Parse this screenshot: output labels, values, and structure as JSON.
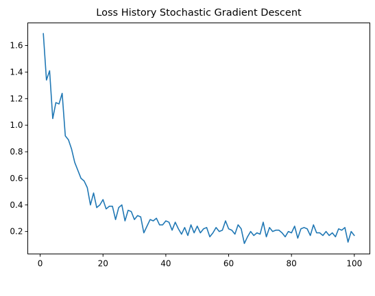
{
  "chart_data": {
    "type": "line",
    "title": "Loss History Stochastic Gradient Descent",
    "xlabel": "",
    "ylabel": "",
    "xlim": [
      -3.95,
      104.95
    ],
    "ylim": [
      0.031,
      1.77
    ],
    "x_ticks": [
      0,
      20,
      40,
      60,
      80,
      100
    ],
    "y_ticks": [
      0.2,
      0.4,
      0.6,
      0.8,
      1.0,
      1.2,
      1.4,
      1.6
    ],
    "y_tick_labels": [
      "0.2",
      "0.4",
      "0.6",
      "0.8",
      "1.0",
      "1.2",
      "1.4",
      "1.6"
    ],
    "x_tick_labels": [
      "0",
      "20",
      "40",
      "60",
      "80",
      "100"
    ],
    "grid": false,
    "color": "#1f77b4",
    "series": [
      {
        "x": [
          1,
          2,
          3,
          4,
          5,
          6,
          7,
          8,
          9,
          10,
          11,
          12,
          13,
          14,
          15,
          16,
          17,
          18,
          19,
          20,
          21,
          22,
          23,
          24,
          25,
          26,
          27,
          28,
          29,
          30,
          31,
          32,
          33,
          34,
          35,
          36,
          37,
          38,
          39,
          40,
          41,
          42,
          43,
          44,
          45,
          46,
          47,
          48,
          49,
          50,
          51,
          52,
          53,
          54,
          55,
          56,
          57,
          58,
          59,
          60,
          61,
          62,
          63,
          64,
          65,
          66,
          67,
          68,
          69,
          70,
          71,
          72,
          73,
          74,
          75,
          76,
          77,
          78,
          79,
          80,
          81,
          82,
          83,
          84,
          85,
          86,
          87,
          88,
          89,
          90,
          91,
          92,
          93,
          94,
          95,
          96,
          97,
          98,
          99,
          100
        ],
        "values": [
          1.69,
          1.34,
          1.41,
          1.05,
          1.17,
          1.16,
          1.24,
          0.92,
          0.89,
          0.82,
          0.72,
          0.66,
          0.6,
          0.58,
          0.53,
          0.4,
          0.49,
          0.38,
          0.4,
          0.44,
          0.37,
          0.39,
          0.39,
          0.29,
          0.38,
          0.4,
          0.28,
          0.36,
          0.35,
          0.29,
          0.32,
          0.31,
          0.19,
          0.24,
          0.29,
          0.28,
          0.3,
          0.25,
          0.25,
          0.28,
          0.27,
          0.21,
          0.27,
          0.22,
          0.18,
          0.23,
          0.17,
          0.25,
          0.19,
          0.24,
          0.19,
          0.22,
          0.23,
          0.16,
          0.19,
          0.23,
          0.2,
          0.21,
          0.28,
          0.22,
          0.21,
          0.18,
          0.25,
          0.22,
          0.11,
          0.16,
          0.2,
          0.17,
          0.19,
          0.18,
          0.27,
          0.16,
          0.23,
          0.2,
          0.21,
          0.21,
          0.19,
          0.16,
          0.2,
          0.19,
          0.24,
          0.15,
          0.22,
          0.23,
          0.22,
          0.17,
          0.25,
          0.19,
          0.19,
          0.17,
          0.2,
          0.17,
          0.19,
          0.16,
          0.22,
          0.21,
          0.23,
          0.12,
          0.2,
          0.17
        ]
      }
    ]
  }
}
